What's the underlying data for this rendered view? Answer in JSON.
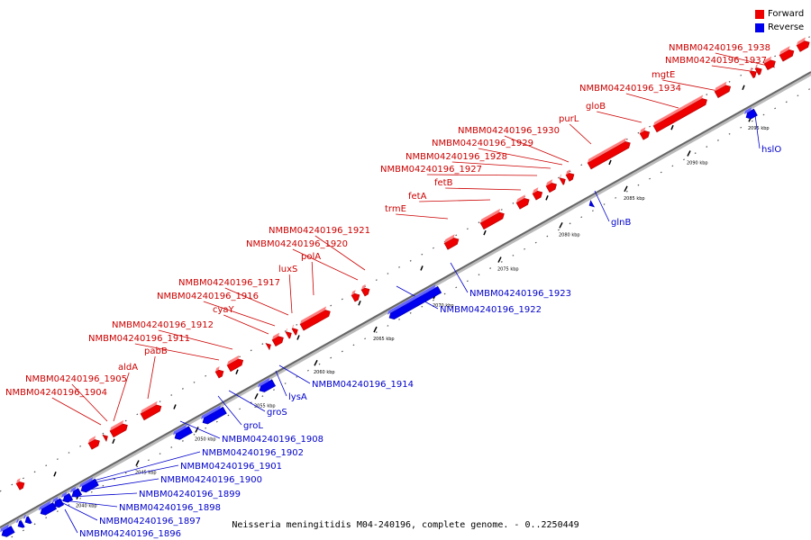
{
  "legend": {
    "forward": {
      "label": "Forward",
      "color": "#ee0000"
    },
    "reverse": {
      "label": "Reverse",
      "color": "#0000ee"
    }
  },
  "caption": "Neisseria meningitidis M04-240196, complete genome. - 0..2250449",
  "scale_labels": [
    "2040 kbp",
    "2045 kbp",
    "2050 kbp",
    "2055 kbp",
    "2060 kbp",
    "2065 kbp",
    "2070 kbp",
    "2075 kbp",
    "2080 kbp",
    "2085 kbp",
    "2090 kbp",
    "2095 kbp"
  ],
  "forward_labels": [
    "NMBM04240196_1904",
    "NMBM04240196_1905",
    "aldA",
    "pabB",
    "NMBM04240196_1911",
    "NMBM04240196_1912",
    "cyaY",
    "NMBM04240196_1916",
    "NMBM04240196_1917",
    "luxS",
    "polA",
    "NMBM04240196_1920",
    "NMBM04240196_1921",
    "trmE",
    "fetA",
    "fetB",
    "NMBM04240196_1927",
    "NMBM04240196_1928",
    "NMBM04240196_1929",
    "NMBM04240196_1930",
    "purL",
    "gloB",
    "NMBM04240196_1934",
    "mgtE",
    "NMBM04240196_1937",
    "NMBM04240196_1938"
  ],
  "reverse_labels": [
    "NMBM04240196_1896",
    "NMBM04240196_1897",
    "NMBM04240196_1898",
    "NMBM04240196_1899",
    "NMBM04240196_1900",
    "NMBM04240196_1901",
    "NMBM04240196_1902",
    "NMBM04240196_1908",
    "groL",
    "groS",
    "lysA",
    "NMBM04240196_1914",
    "NMBM04240196_1922",
    "NMBM04240196_1923",
    "glnB",
    "hslO"
  ]
}
